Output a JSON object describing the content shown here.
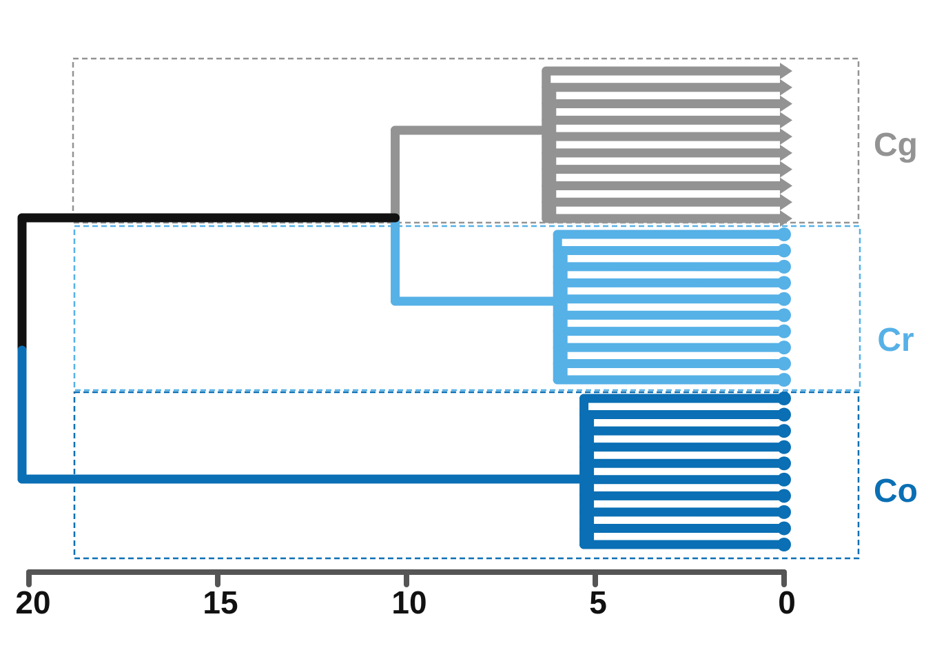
{
  "chart_data": {
    "type": "dendrogram",
    "title": "",
    "xlabel": "",
    "ylabel": "",
    "orientation": "leaves-right",
    "x_axis": {
      "ticks": [
        20,
        15,
        10,
        5,
        0
      ],
      "tick_labels": [
        "20",
        "15",
        "10",
        "5",
        "0"
      ],
      "range": [
        20,
        0
      ]
    },
    "root": {
      "height": 20,
      "color": "#111111"
    },
    "supergroup": {
      "height": 10.3,
      "children": [
        "Cg",
        "Cr"
      ]
    },
    "groups": [
      {
        "name": "Cg",
        "label": "Cg",
        "color": "#939393",
        "leaf_marker": "triangle",
        "leaf_count": 10,
        "join_height": 6.3
      },
      {
        "name": "Cr",
        "label": "Cr",
        "color": "#56b1e7",
        "leaf_marker": "circle",
        "leaf_count": 10,
        "join_height": 6.0
      },
      {
        "name": "Co",
        "label": "Co",
        "color": "#0a6fb4",
        "leaf_marker": "circle",
        "leaf_count": 10,
        "join_height": 5.3
      }
    ],
    "boxes": [
      {
        "group": "Cg",
        "color": "#939393",
        "style": "dashed"
      },
      {
        "group": "Cr",
        "color": "#56b1e7",
        "style": "dashed"
      },
      {
        "group": "Co",
        "color": "#0a6fb4",
        "style": "dashed"
      }
    ],
    "grid": false,
    "legend": "none"
  }
}
